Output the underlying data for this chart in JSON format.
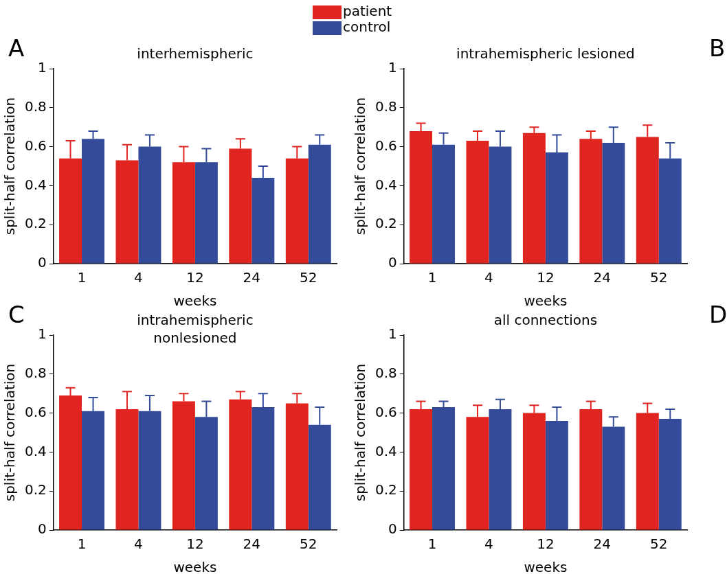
{
  "chart_data": [
    {
      "type": "bar",
      "title": "interhemispheric",
      "xlabel": "weeks",
      "ylabel": "split-half correlation",
      "annotations": [
        "A"
      ],
      "legend": "top",
      "categories": [
        "1",
        "4",
        "12",
        "24",
        "52"
      ],
      "ylim": [
        0,
        1
      ],
      "yticks": [
        0,
        0.2,
        0.4,
        0.6,
        0.8,
        1
      ],
      "series": [
        {
          "name": "patient",
          "color": "#e02520",
          "values": [
            0.54,
            0.53,
            0.52,
            0.59,
            0.54
          ],
          "errors": [
            [
              0.54,
              0.63
            ],
            [
              0.53,
              0.61
            ],
            [
              0.52,
              0.6
            ],
            [
              0.59,
              0.64
            ],
            [
              0.54,
              0.6
            ]
          ]
        },
        {
          "name": "control",
          "color": "#334b98",
          "values": [
            0.64,
            0.6,
            0.52,
            0.44,
            0.61
          ],
          "errors": [
            [
              0.64,
              0.68
            ],
            [
              0.6,
              0.66
            ],
            [
              0.52,
              0.59
            ],
            [
              0.44,
              0.5
            ],
            [
              0.61,
              0.66
            ]
          ]
        }
      ]
    },
    {
      "type": "bar",
      "title": "intrahemispheric lesioned",
      "xlabel": "weeks",
      "ylabel": "split-half correlation",
      "annotations": [
        "B"
      ],
      "categories": [
        "1",
        "4",
        "12",
        "24",
        "52"
      ],
      "ylim": [
        0,
        1
      ],
      "yticks": [
        0,
        0.2,
        0.4,
        0.6,
        0.8,
        1
      ],
      "series": [
        {
          "color": "#e02520",
          "values": [
            0.68,
            0.63,
            0.67,
            0.64,
            0.65
          ],
          "errors": [
            [
              0.68,
              0.72
            ],
            [
              0.63,
              0.68
            ],
            [
              0.67,
              0.7
            ],
            [
              0.64,
              0.68
            ],
            [
              0.65,
              0.71
            ]
          ]
        },
        {
          "color": "#334b98",
          "values": [
            0.61,
            0.6,
            0.57,
            0.62,
            0.54
          ],
          "errors": [
            [
              0.61,
              0.67
            ],
            [
              0.6,
              0.68
            ],
            [
              0.57,
              0.66
            ],
            [
              0.62,
              0.7
            ],
            [
              0.54,
              0.62
            ]
          ]
        }
      ]
    },
    {
      "type": "bar",
      "title": "intrahemispheric\nnonlesioned",
      "xlabel": "weeks",
      "ylabel": "split-half correlation",
      "annotations": [
        "C"
      ],
      "categories": [
        "1",
        "4",
        "12",
        "24",
        "52"
      ],
      "ylim": [
        0,
        1
      ],
      "yticks": [
        0,
        0.2,
        0.4,
        0.6,
        0.8,
        1
      ],
      "series": [
        {
          "color": "#e02520",
          "values": [
            0.69,
            0.62,
            0.66,
            0.67,
            0.65
          ],
          "errors": [
            [
              0.69,
              0.73
            ],
            [
              0.62,
              0.71
            ],
            [
              0.66,
              0.7
            ],
            [
              0.67,
              0.71
            ],
            [
              0.65,
              0.7
            ]
          ]
        },
        {
          "color": "#334b98",
          "values": [
            0.61,
            0.61,
            0.58,
            0.63,
            0.54
          ],
          "errors": [
            [
              0.61,
              0.68
            ],
            [
              0.61,
              0.69
            ],
            [
              0.58,
              0.66
            ],
            [
              0.63,
              0.7
            ],
            [
              0.54,
              0.63
            ]
          ]
        }
      ]
    },
    {
      "type": "bar",
      "title": "all connections",
      "xlabel": "weeks",
      "ylabel": "split-half correlation",
      "annotations": [
        "D"
      ],
      "categories": [
        "1",
        "4",
        "12",
        "24",
        "52"
      ],
      "ylim": [
        0,
        1
      ],
      "yticks": [
        0,
        0.2,
        0.4,
        0.6,
        0.8,
        1
      ],
      "series": [
        {
          "color": "#e02520",
          "values": [
            0.62,
            0.58,
            0.6,
            0.62,
            0.6
          ],
          "errors": [
            [
              0.62,
              0.66
            ],
            [
              0.58,
              0.64
            ],
            [
              0.6,
              0.64
            ],
            [
              0.62,
              0.66
            ],
            [
              0.6,
              0.65
            ]
          ]
        },
        {
          "color": "#334b98",
          "values": [
            0.63,
            0.62,
            0.56,
            0.53,
            0.57
          ],
          "errors": [
            [
              0.63,
              0.66
            ],
            [
              0.62,
              0.67
            ],
            [
              0.56,
              0.63
            ],
            [
              0.53,
              0.58
            ],
            [
              0.57,
              0.62
            ]
          ]
        }
      ]
    }
  ]
}
